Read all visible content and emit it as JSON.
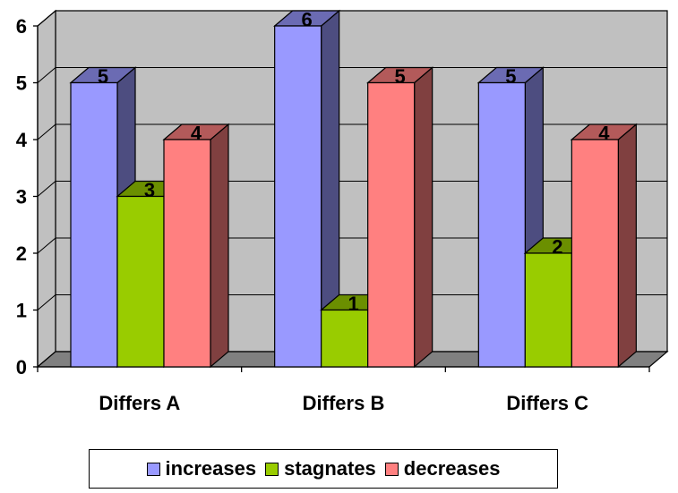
{
  "chart_data": {
    "type": "bar",
    "categories": [
      "Differs A",
      "Differs B",
      "Differs C"
    ],
    "series": [
      {
        "name": "increases",
        "values": [
          5,
          6,
          5
        ],
        "color": "#9999ff"
      },
      {
        "name": "stagnates",
        "values": [
          3,
          1,
          2
        ],
        "color": "#99cc00"
      },
      {
        "name": "decreases",
        "values": [
          4,
          5,
          4
        ],
        "color": "#ff8080"
      }
    ],
    "ylim": [
      0,
      6
    ],
    "yticks": [
      "0",
      "1",
      "2",
      "3",
      "4",
      "5",
      "6"
    ],
    "title": "",
    "xlabel": "",
    "ylabel": "",
    "grid": true,
    "three_d": true,
    "data_labels": true,
    "legend": "bottom",
    "colors": {
      "wall": "#c0c0c0",
      "floor": "#808080"
    }
  }
}
